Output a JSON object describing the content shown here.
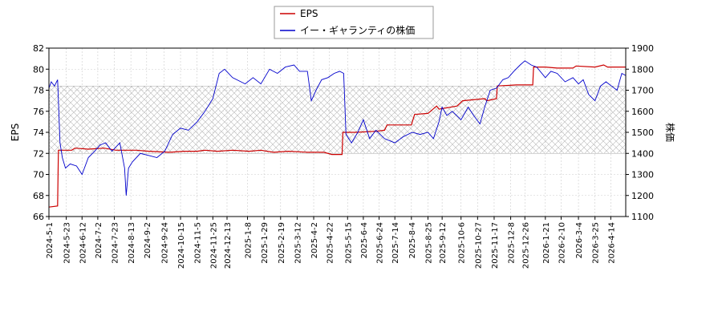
{
  "chart_data": {
    "type": "line",
    "legend": {
      "placement": "top-center",
      "items": [
        {
          "label": "EPS",
          "color": "#cc0000"
        },
        {
          "label": "イー・ギャランティの株価",
          "color": "#0000cc"
        }
      ]
    },
    "y_left": {
      "label": "EPS",
      "range": [
        66,
        82
      ],
      "ticks": [
        66,
        68,
        70,
        72,
        74,
        76,
        78,
        80,
        82
      ]
    },
    "y_right": {
      "label": "株価",
      "range": [
        1100,
        1900
      ],
      "ticks": [
        1100,
        1200,
        1300,
        1400,
        1500,
        1600,
        1700,
        1800,
        1900
      ]
    },
    "x_axis": {
      "range": [
        "2024-05-01",
        "2026-05-03"
      ],
      "tick_labels": [
        "2024-5-1",
        "2024-5-23",
        "2024-6-12",
        "2024-7-2",
        "2024-7-23",
        "2024-8-13",
        "2024-9-2",
        "2024-9-24",
        "2024-10-15",
        "2024-11-5",
        "2024-11-25",
        "2024-12-13",
        "2025-1-8",
        "2025-1-29",
        "2025-2-19",
        "2025-3-12",
        "2025-4-2",
        "2025-4-22",
        "2025-5-15",
        "2025-6-4",
        "2025-6-24",
        "2025-7-14",
        "2025-8-4",
        "2025-8-25",
        "2025-9-12",
        "2025-10-6",
        "2025-10-27",
        "2025-11-17",
        "2025-12-8",
        "2025-12-26",
        "2026-1-21",
        "2026-2-10",
        "2026-3-4",
        "2026-3-25",
        "2026-4-14"
      ]
    },
    "grid": true,
    "hatched_band_price": [
      1400,
      1720
    ],
    "series": [
      {
        "name": "EPS",
        "axis": "left",
        "color": "#cc0000",
        "points": [
          [
            "2024-05-01",
            66.9
          ],
          [
            "2024-05-12",
            67.0
          ],
          [
            "2024-05-13",
            72.3
          ],
          [
            "2024-05-30",
            72.3
          ],
          [
            "2024-06-03",
            72.5
          ],
          [
            "2024-06-20",
            72.4
          ],
          [
            "2024-07-10",
            72.5
          ],
          [
            "2024-07-25",
            72.3
          ],
          [
            "2024-08-20",
            72.3
          ],
          [
            "2024-09-05",
            72.2
          ],
          [
            "2024-10-01",
            72.1
          ],
          [
            "2024-10-20",
            72.2
          ],
          [
            "2024-11-05",
            72.2
          ],
          [
            "2024-11-15",
            72.3
          ],
          [
            "2024-12-01",
            72.2
          ],
          [
            "2024-12-20",
            72.3
          ],
          [
            "2025-01-10",
            72.2
          ],
          [
            "2025-01-25",
            72.3
          ],
          [
            "2025-02-10",
            72.1
          ],
          [
            "2025-03-01",
            72.2
          ],
          [
            "2025-03-25",
            72.1
          ],
          [
            "2025-04-15",
            72.1
          ],
          [
            "2025-04-25",
            71.9
          ],
          [
            "2025-05-08",
            71.9
          ],
          [
            "2025-05-09",
            74.0
          ],
          [
            "2025-05-25",
            74.0
          ],
          [
            "2025-06-20",
            74.1
          ],
          [
            "2025-07-01",
            74.2
          ],
          [
            "2025-07-04",
            74.7
          ],
          [
            "2025-08-04",
            74.7
          ],
          [
            "2025-08-08",
            75.7
          ],
          [
            "2025-08-25",
            75.8
          ],
          [
            "2025-09-05",
            76.5
          ],
          [
            "2025-09-08",
            76.2
          ],
          [
            "2025-10-01",
            76.5
          ],
          [
            "2025-10-08",
            77.0
          ],
          [
            "2025-11-05",
            77.2
          ],
          [
            "2025-11-08",
            77.0
          ],
          [
            "2025-11-20",
            77.2
          ],
          [
            "2025-11-21",
            78.4
          ],
          [
            "2025-12-15",
            78.5
          ],
          [
            "2026-01-05",
            78.5
          ],
          [
            "2026-01-06",
            80.2
          ],
          [
            "2026-01-21",
            80.2
          ],
          [
            "2026-02-05",
            80.1
          ],
          [
            "2026-02-25",
            80.1
          ],
          [
            "2026-03-01",
            80.3
          ],
          [
            "2026-03-25",
            80.2
          ],
          [
            "2026-04-05",
            80.4
          ],
          [
            "2026-04-10",
            80.2
          ],
          [
            "2026-05-03",
            80.2
          ]
        ]
      },
      {
        "name": "イー・ギャランティの株価",
        "axis": "right",
        "color": "#0000cc",
        "points": [
          [
            "2024-05-01",
            1710
          ],
          [
            "2024-05-04",
            1740
          ],
          [
            "2024-05-08",
            1720
          ],
          [
            "2024-05-12",
            1750
          ],
          [
            "2024-05-15",
            1450
          ],
          [
            "2024-05-18",
            1380
          ],
          [
            "2024-05-22",
            1330
          ],
          [
            "2024-05-28",
            1350
          ],
          [
            "2024-06-05",
            1340
          ],
          [
            "2024-06-12",
            1300
          ],
          [
            "2024-06-20",
            1380
          ],
          [
            "2024-06-28",
            1410
          ],
          [
            "2024-07-05",
            1440
          ],
          [
            "2024-07-12",
            1450
          ],
          [
            "2024-07-20",
            1410
          ],
          [
            "2024-07-30",
            1450
          ],
          [
            "2024-08-05",
            1330
          ],
          [
            "2024-08-07",
            1200
          ],
          [
            "2024-08-10",
            1330
          ],
          [
            "2024-08-15",
            1360
          ],
          [
            "2024-08-25",
            1400
          ],
          [
            "2024-09-05",
            1390
          ],
          [
            "2024-09-15",
            1380
          ],
          [
            "2024-09-25",
            1410
          ],
          [
            "2024-10-05",
            1490
          ],
          [
            "2024-10-15",
            1520
          ],
          [
            "2024-10-25",
            1510
          ],
          [
            "2024-11-05",
            1550
          ],
          [
            "2024-11-15",
            1600
          ],
          [
            "2024-11-25",
            1660
          ],
          [
            "2024-12-03",
            1780
          ],
          [
            "2024-12-10",
            1800
          ],
          [
            "2024-12-20",
            1760
          ],
          [
            "2025-01-05",
            1730
          ],
          [
            "2025-01-15",
            1760
          ],
          [
            "2025-01-25",
            1730
          ],
          [
            "2025-02-05",
            1800
          ],
          [
            "2025-02-15",
            1780
          ],
          [
            "2025-02-25",
            1810
          ],
          [
            "2025-03-08",
            1820
          ],
          [
            "2025-03-15",
            1790
          ],
          [
            "2025-03-25",
            1790
          ],
          [
            "2025-03-30",
            1650
          ],
          [
            "2025-04-05",
            1700
          ],
          [
            "2025-04-12",
            1750
          ],
          [
            "2025-04-20",
            1760
          ],
          [
            "2025-04-28",
            1780
          ],
          [
            "2025-05-05",
            1790
          ],
          [
            "2025-05-10",
            1780
          ],
          [
            "2025-05-13",
            1490
          ],
          [
            "2025-05-20",
            1450
          ],
          [
            "2025-05-28",
            1500
          ],
          [
            "2025-06-04",
            1560
          ],
          [
            "2025-06-12",
            1470
          ],
          [
            "2025-06-20",
            1510
          ],
          [
            "2025-07-01",
            1470
          ],
          [
            "2025-07-14",
            1450
          ],
          [
            "2025-07-25",
            1480
          ],
          [
            "2025-08-05",
            1500
          ],
          [
            "2025-08-15",
            1490
          ],
          [
            "2025-08-25",
            1500
          ],
          [
            "2025-09-01",
            1470
          ],
          [
            "2025-09-08",
            1550
          ],
          [
            "2025-09-12",
            1620
          ],
          [
            "2025-09-18",
            1580
          ],
          [
            "2025-09-25",
            1600
          ],
          [
            "2025-10-06",
            1560
          ],
          [
            "2025-10-15",
            1620
          ],
          [
            "2025-10-22",
            1580
          ],
          [
            "2025-10-30",
            1540
          ],
          [
            "2025-11-05",
            1620
          ],
          [
            "2025-11-12",
            1700
          ],
          [
            "2025-11-20",
            1710
          ],
          [
            "2025-11-28",
            1750
          ],
          [
            "2025-12-05",
            1760
          ],
          [
            "2025-12-12",
            1790
          ],
          [
            "2025-12-20",
            1820
          ],
          [
            "2025-12-26",
            1840
          ],
          [
            "2026-01-03",
            1820
          ],
          [
            "2026-01-10",
            1810
          ],
          [
            "2026-01-21",
            1760
          ],
          [
            "2026-01-28",
            1790
          ],
          [
            "2026-02-05",
            1780
          ],
          [
            "2026-02-15",
            1740
          ],
          [
            "2026-02-25",
            1760
          ],
          [
            "2026-03-04",
            1730
          ],
          [
            "2026-03-10",
            1750
          ],
          [
            "2026-03-17",
            1680
          ],
          [
            "2026-03-25",
            1650
          ],
          [
            "2026-04-01",
            1720
          ],
          [
            "2026-04-08",
            1740
          ],
          [
            "2026-04-15",
            1720
          ],
          [
            "2026-04-22",
            1700
          ],
          [
            "2026-04-28",
            1780
          ],
          [
            "2026-05-03",
            1770
          ]
        ]
      }
    ]
  }
}
